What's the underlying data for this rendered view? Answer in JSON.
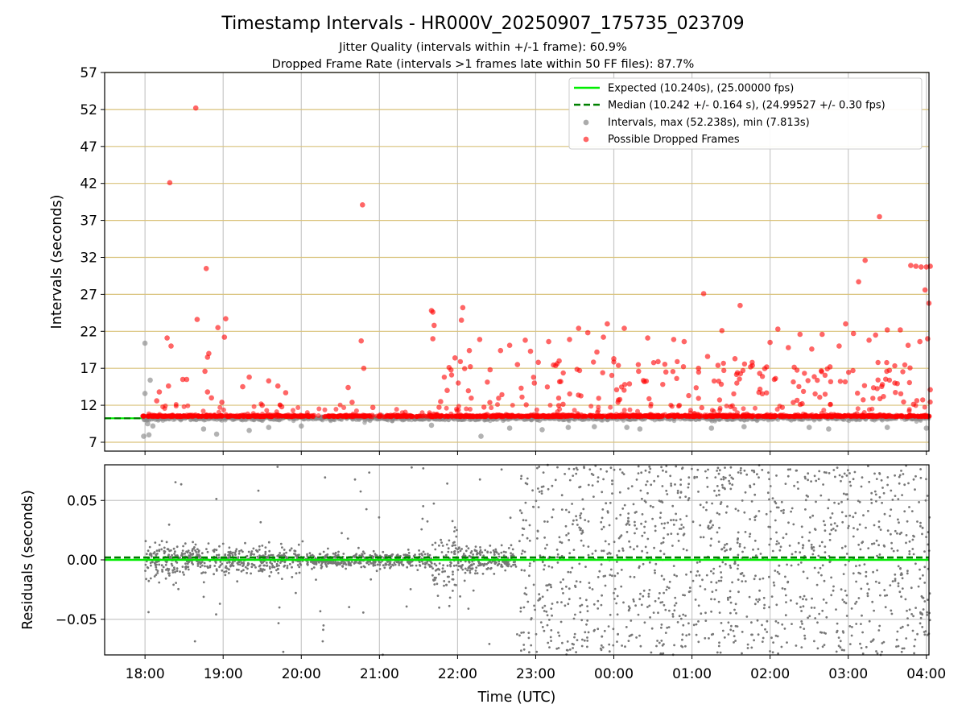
{
  "chart_data": {
    "title": "Timestamp Intervals - HR000V_20250907_175735_023709",
    "subtitles": [
      "Jitter Quality (intervals within +/-1 frame): 60.9%",
      "Dropped Frame Rate (intervals >1 frames late within 50 FF files): 87.7%"
    ],
    "x_axis": {
      "label": "Time (UTC)",
      "range": [
        "2025-09-07 17:29",
        "2025-09-08 04:02"
      ],
      "ticks": [
        "18:00",
        "19:00",
        "20:00",
        "21:00",
        "22:00",
        "23:00",
        "00:00",
        "01:00",
        "02:00",
        "03:00",
        "04:00"
      ],
      "tick_times": [
        "2025-09-07 18:00",
        "2025-09-07 19:00",
        "2025-09-07 20:00",
        "2025-09-07 21:00",
        "2025-09-07 22:00",
        "2025-09-07 23:00",
        "2025-09-08 00:00",
        "2025-09-08 01:00",
        "2025-09-08 02:00",
        "2025-09-08 03:00",
        "2025-09-08 04:00"
      ]
    },
    "panels": [
      {
        "id": "intervals",
        "type": "scatter",
        "ylabel": "Intervals (seconds)",
        "ylim": [
          5.8,
          57
        ],
        "yticks": [
          7,
          12,
          17,
          22,
          27,
          32,
          37,
          42,
          47,
          52,
          57
        ],
        "grid": "horizontal lines, golden",
        "legend_position": "top-right",
        "series": [
          {
            "name": "Expected (10.240s), (25.00000 fps)",
            "kind": "line",
            "style": "solid",
            "color": "#00ee00",
            "y": 10.24
          },
          {
            "name": "Median (10.242 +/- 0.164 s), (24.99527 +/- 0.30 fps)",
            "kind": "line",
            "style": "dashed",
            "color": "#008000",
            "y": 10.242
          },
          {
            "name": "Intervals, max (52.238s), min (7.813s)",
            "kind": "scatter",
            "color": "#888888",
            "points": [
              [
                "2025-09-07 18:00",
                20.4
              ],
              [
                "2025-09-07 18:00",
                13.6
              ],
              [
                "2025-09-07 18:04",
                15.4
              ],
              [
                "2025-09-07 18:02",
                9.5
              ],
              [
                "2025-09-07 18:03",
                8.0
              ],
              [
                "2025-09-07 17:59",
                7.8
              ],
              [
                "2025-09-07 18:06",
                9.2
              ],
              [
                "2025-09-07 18:45",
                8.8
              ],
              [
                "2025-09-07 18:55",
                8.1
              ],
              [
                "2025-09-07 19:20",
                8.6
              ],
              [
                "2025-09-07 19:35",
                9.0
              ],
              [
                "2025-09-07 20:00",
                9.2
              ],
              [
                "2025-09-07 21:40",
                9.3
              ],
              [
                "2025-09-07 22:18",
                7.8
              ],
              [
                "2025-09-07 22:40",
                8.9
              ],
              [
                "2025-09-07 23:05",
                8.7
              ],
              [
                "2025-09-07 23:25",
                9.0
              ],
              [
                "2025-09-07 23:45",
                9.1
              ],
              [
                "2025-09-08 00:10",
                9.0
              ],
              [
                "2025-09-08 00:20",
                8.8
              ],
              [
                "2025-09-08 01:15",
                8.9
              ],
              [
                "2025-09-08 01:40",
                9.1
              ],
              [
                "2025-09-08 02:30",
                9.0
              ],
              [
                "2025-09-08 02:45",
                8.8
              ],
              [
                "2025-09-08 03:30",
                9.0
              ],
              [
                "2025-09-08 04:00",
                8.9
              ]
            ]
          },
          {
            "name": "Possible Dropped Frames",
            "kind": "scatter",
            "color": "#ff0000",
            "points": [
              [
                "2025-09-07 18:39",
                52.2
              ],
              [
                "2025-09-07 18:19",
                42.1
              ],
              [
                "2025-09-07 18:47",
                30.5
              ],
              [
                "2025-09-07 18:40",
                23.6
              ],
              [
                "2025-09-07 18:56",
                22.5
              ],
              [
                "2025-09-07 19:02",
                23.7
              ],
              [
                "2025-09-07 18:17",
                21.1
              ],
              [
                "2025-09-07 18:20",
                20.0
              ],
              [
                "2025-09-07 18:49",
                19.0
              ],
              [
                "2025-09-07 18:48",
                18.5
              ],
              [
                "2025-09-07 18:46",
                16.6
              ],
              [
                "2025-09-07 18:29",
                15.5
              ],
              [
                "2025-09-07 18:32",
                15.5
              ],
              [
                "2025-09-07 18:18",
                14.6
              ],
              [
                "2025-09-07 18:11",
                13.8
              ],
              [
                "2025-09-07 18:48",
                13.8
              ],
              [
                "2025-09-07 18:51",
                13.0
              ],
              [
                "2025-09-07 18:59",
                12.4
              ],
              [
                "2025-09-07 19:01",
                21.2
              ],
              [
                "2025-09-07 18:09",
                12.6
              ],
              [
                "2025-09-07 19:20",
                15.8
              ],
              [
                "2025-09-07 19:15",
                14.5
              ],
              [
                "2025-09-07 19:35",
                15.3
              ],
              [
                "2025-09-07 19:42",
                14.6
              ],
              [
                "2025-09-07 19:48",
                13.7
              ],
              [
                "2025-09-07 19:30",
                12.0
              ],
              [
                "2025-09-07 19:45",
                11.8
              ],
              [
                "2025-09-07 20:36",
                14.4
              ],
              [
                "2025-09-07 20:39",
                12.4
              ],
              [
                "2025-09-07 20:47",
                39.1
              ],
              [
                "2025-09-07 20:46",
                20.7
              ],
              [
                "2025-09-07 20:48",
                17.0
              ],
              [
                "2025-09-07 20:55",
                11.7
              ],
              [
                "2025-09-07 21:40",
                24.8
              ],
              [
                "2025-09-07 21:41",
                24.6
              ],
              [
                "2025-09-07 21:42",
                22.8
              ],
              [
                "2025-09-07 21:41",
                21.0
              ],
              [
                "2025-09-07 21:47",
                12.5
              ],
              [
                "2025-09-07 21:52",
                14.0
              ],
              [
                "2025-09-07 21:58",
                18.4
              ],
              [
                "2025-09-07 22:04",
                25.2
              ],
              [
                "2025-09-07 22:03",
                23.5
              ],
              [
                "2025-09-07 22:09",
                19.4
              ],
              [
                "2025-09-07 22:17",
                20.9
              ],
              [
                "2025-09-07 22:25",
                16.8
              ],
              [
                "2025-09-07 22:33",
                19.4
              ],
              [
                "2025-09-07 22:40",
                20.1
              ],
              [
                "2025-09-07 22:46",
                17.5
              ],
              [
                "2025-09-07 22:52",
                20.8
              ],
              [
                "2025-09-07 22:56",
                19.3
              ],
              [
                "2025-09-07 23:02",
                17.8
              ],
              [
                "2025-09-07 22:59",
                15.0
              ],
              [
                "2025-09-07 23:10",
                20.6
              ],
              [
                "2025-09-07 23:18",
                18.0
              ],
              [
                "2025-09-07 23:26",
                20.9
              ],
              [
                "2025-09-07 23:33",
                22.4
              ],
              [
                "2025-09-07 23:40",
                21.8
              ],
              [
                "2025-09-07 23:47",
                19.2
              ],
              [
                "2025-09-07 23:52",
                21.2
              ],
              [
                "2025-09-07 23:55",
                23.0
              ],
              [
                "2025-09-08 00:00",
                18.3
              ],
              [
                "2025-09-08 00:08",
                22.4
              ],
              [
                "2025-09-08 00:12",
                14.9
              ],
              [
                "2025-09-08 00:19",
                16.6
              ],
              [
                "2025-09-08 00:26",
                21.1
              ],
              [
                "2025-09-08 00:34",
                17.9
              ],
              [
                "2025-09-08 00:40",
                16.5
              ],
              [
                "2025-09-08 00:46",
                20.9
              ],
              [
                "2025-09-08 00:54",
                20.6
              ],
              [
                "2025-09-08 01:09",
                27.1
              ],
              [
                "2025-09-08 01:05",
                17.0
              ],
              [
                "2025-09-08 01:12",
                18.6
              ],
              [
                "2025-09-08 01:20",
                17.4
              ],
              [
                "2025-09-08 01:23",
                22.1
              ],
              [
                "2025-09-08 01:33",
                18.3
              ],
              [
                "2025-09-08 01:37",
                25.5
              ],
              [
                "2025-09-08 01:45",
                17.2
              ],
              [
                "2025-09-08 01:52",
                16.3
              ],
              [
                "2025-09-08 02:00",
                20.5
              ],
              [
                "2025-09-08 02:06",
                22.3
              ],
              [
                "2025-09-08 02:14",
                19.8
              ],
              [
                "2025-09-08 02:23",
                21.6
              ],
              [
                "2025-09-08 02:32",
                19.6
              ],
              [
                "2025-09-08 02:40",
                21.6
              ],
              [
                "2025-09-08 02:46",
                17.2
              ],
              [
                "2025-09-08 02:53",
                20.0
              ],
              [
                "2025-09-08 02:58",
                23.0
              ],
              [
                "2025-09-08 03:04",
                21.7
              ],
              [
                "2025-09-08 03:13",
                31.6
              ],
              [
                "2025-09-08 03:08",
                28.7
              ],
              [
                "2025-09-08 03:24",
                37.5
              ],
              [
                "2025-09-08 03:16",
                20.8
              ],
              [
                "2025-09-08 03:21",
                21.5
              ],
              [
                "2025-09-08 03:30",
                22.2
              ],
              [
                "2025-09-08 03:40",
                22.2
              ],
              [
                "2025-09-08 03:46",
                20.1
              ],
              [
                "2025-09-08 03:48",
                30.9
              ],
              [
                "2025-09-08 03:52",
                30.8
              ],
              [
                "2025-09-08 03:56",
                30.7
              ],
              [
                "2025-09-08 04:00",
                30.7
              ],
              [
                "2025-09-08 04:03",
                30.8
              ],
              [
                "2025-09-08 03:59",
                27.6
              ],
              [
                "2025-09-08 04:02",
                25.8
              ],
              [
                "2025-09-08 04:01",
                21.0
              ],
              [
                "2025-09-08 03:55",
                20.6
              ],
              [
                "2025-09-08 04:03",
                14.1
              ]
            ]
          }
        ]
      },
      {
        "id": "residuals",
        "type": "scatter",
        "ylabel": "Residuals (seconds)",
        "ylim": [
          -0.08,
          0.08
        ],
        "yticks": [
          0.05,
          0.0,
          -0.05
        ],
        "ytick_labels": [
          "0.05",
          "0.00",
          "−0.05"
        ],
        "grid": "both",
        "reference_lines": [
          {
            "y": 0.0,
            "color": "#00ee00",
            "style": "solid"
          },
          {
            "y": 0.002,
            "color": "#008000",
            "style": "dashed"
          }
        ],
        "point_color": "#777777",
        "residual_spread_by_period": [
          [
            "2025-09-07 18:00",
            "2025-09-07 19:00",
            0.012
          ],
          [
            "2025-09-07 19:00",
            "2025-09-07 20:00",
            0.01
          ],
          [
            "2025-09-07 20:00",
            "2025-09-07 21:40",
            0.006
          ],
          [
            "2025-09-07 21:40",
            "2025-09-07 22:00",
            0.03
          ],
          [
            "2025-09-07 22:00",
            "2025-09-07 22:45",
            0.01
          ],
          [
            "2025-09-07 22:45",
            "2025-09-08 04:03",
            0.045
          ]
        ]
      }
    ]
  }
}
